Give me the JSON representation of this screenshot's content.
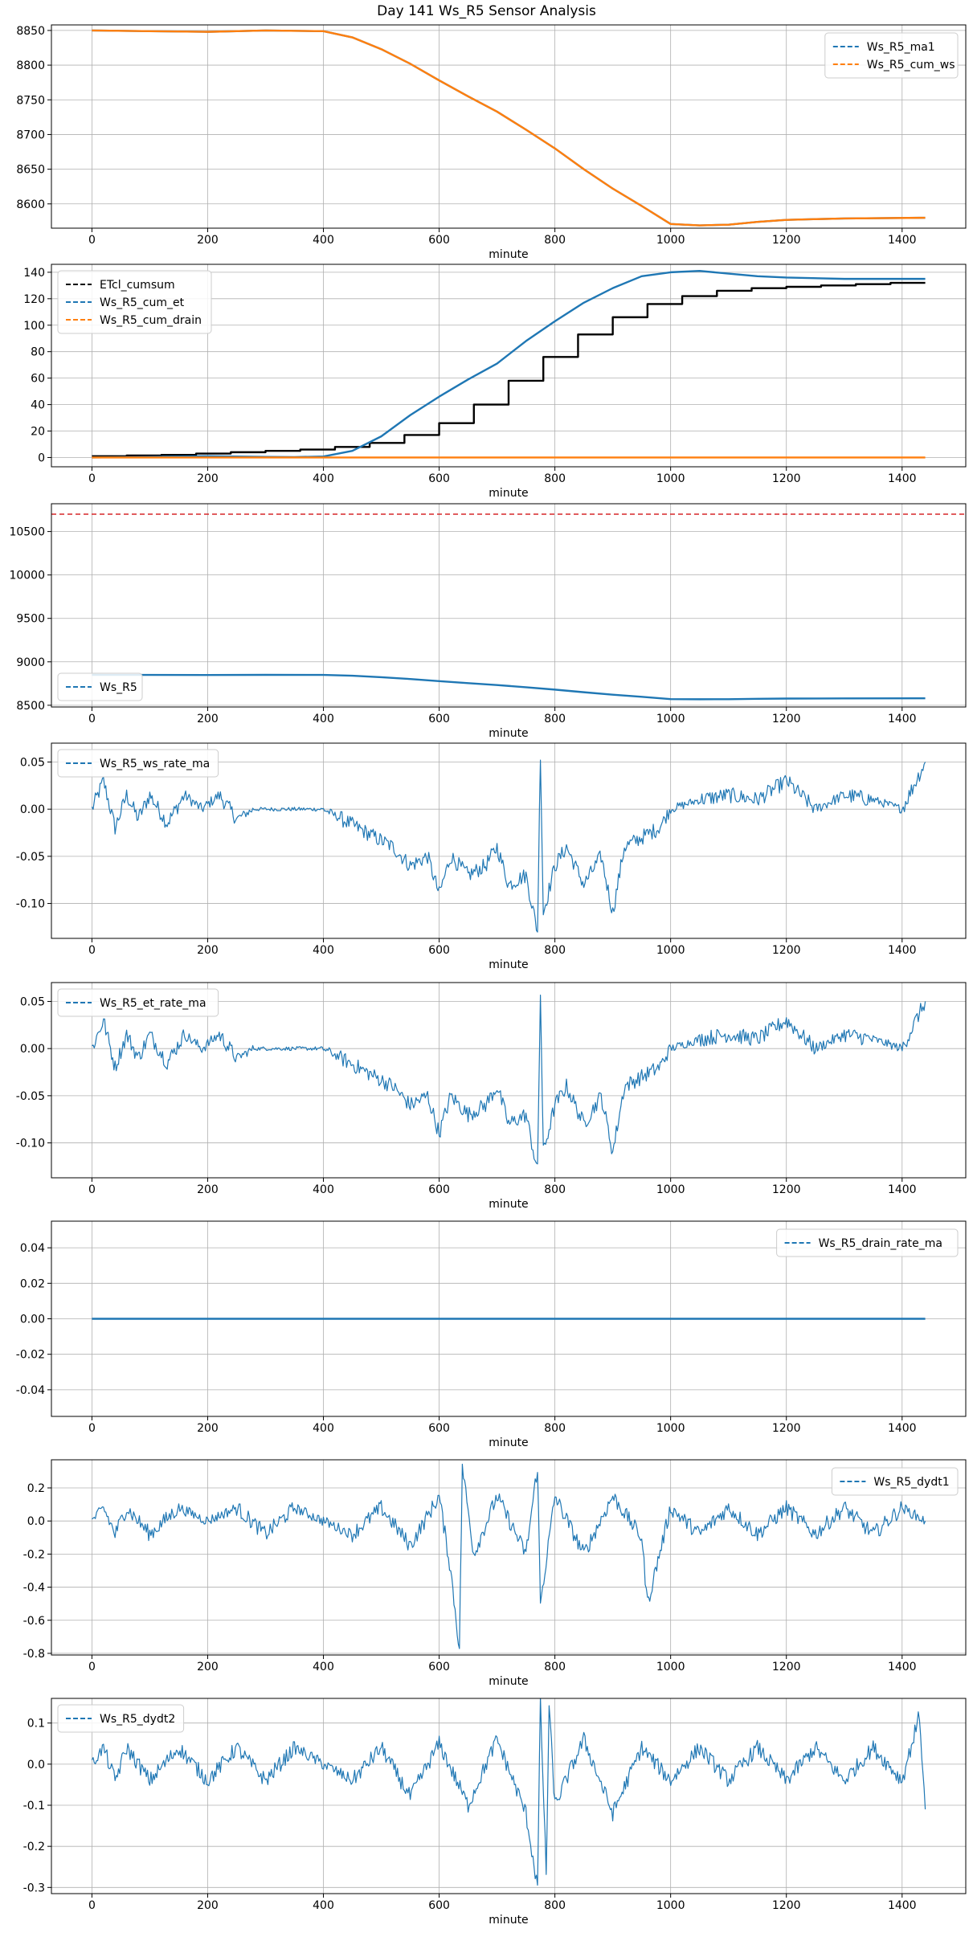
{
  "figure": {
    "title": "Day 141 Ws_R5 Sensor Analysis"
  },
  "chart_data": [
    {
      "type": "line",
      "xlabel": "minute",
      "xlim": [
        -70,
        1510
      ],
      "xticks": [
        0,
        200,
        400,
        600,
        800,
        1000,
        1200,
        1400
      ],
      "ylim": [
        8565,
        8858
      ],
      "yticks": [
        8600,
        8650,
        8700,
        8750,
        8800,
        8850
      ],
      "yticklabels": [
        "8600",
        "8650",
        "8700",
        "8750",
        "8800",
        "8850"
      ],
      "grid": true,
      "legend": "top-right",
      "series": [
        {
          "name": "Ws_R5_ma1",
          "color": "#1f77b4",
          "dashed": true,
          "x": [
            0,
            100,
            200,
            300,
            400,
            450,
            500,
            550,
            600,
            650,
            700,
            750,
            800,
            850,
            900,
            950,
            1000,
            1050,
            1100,
            1150,
            1200,
            1300,
            1440
          ],
          "y": [
            8850,
            8849,
            8848,
            8850,
            8849,
            8840,
            8823,
            8802,
            8778,
            8755,
            8733,
            8707,
            8680,
            8650,
            8622,
            8597,
            8571,
            8569,
            8570,
            8574,
            8577,
            8579,
            8580
          ]
        },
        {
          "name": "Ws_R5_cum_ws",
          "color": "#ff7f0e",
          "dashed": true,
          "x": [
            0,
            100,
            200,
            300,
            400,
            450,
            500,
            550,
            600,
            650,
            700,
            750,
            800,
            850,
            900,
            950,
            1000,
            1050,
            1100,
            1150,
            1200,
            1300,
            1440
          ],
          "y": [
            8850,
            8849,
            8848,
            8850,
            8849,
            8840,
            8823,
            8802,
            8778,
            8755,
            8733,
            8707,
            8680,
            8650,
            8622,
            8597,
            8571,
            8569,
            8570,
            8574,
            8577,
            8579,
            8580
          ]
        }
      ]
    },
    {
      "type": "line",
      "xlabel": "minute",
      "xlim": [
        -70,
        1510
      ],
      "xticks": [
        0,
        200,
        400,
        600,
        800,
        1000,
        1200,
        1400
      ],
      "ylim": [
        -7,
        146
      ],
      "yticks": [
        0,
        20,
        40,
        60,
        80,
        100,
        120,
        140
      ],
      "yticklabels": [
        "0",
        "20",
        "40",
        "60",
        "80",
        "100",
        "120",
        "140"
      ],
      "grid": true,
      "legend": "top-left",
      "series": [
        {
          "name": "ETcl_cumsum",
          "color": "#000000",
          "dashed": true,
          "step": true,
          "x": [
            0,
            60,
            120,
            180,
            240,
            300,
            360,
            420,
            480,
            540,
            600,
            660,
            720,
            780,
            840,
            900,
            960,
            1020,
            1080,
            1140,
            1200,
            1260,
            1320,
            1380,
            1440
          ],
          "y": [
            1,
            1.5,
            2,
            3,
            4,
            5,
            6,
            8,
            11,
            17,
            26,
            40,
            58,
            76,
            93,
            106,
            116,
            122,
            126,
            128,
            129,
            130,
            131,
            132,
            132
          ]
        },
        {
          "name": "Ws_R5_cum_et",
          "color": "#1f77b4",
          "dashed": true,
          "x": [
            0,
            100,
            200,
            300,
            350,
            400,
            450,
            500,
            550,
            600,
            650,
            700,
            750,
            800,
            850,
            900,
            950,
            1000,
            1050,
            1100,
            1150,
            1200,
            1300,
            1440
          ],
          "y": [
            0,
            0.5,
            1,
            0.5,
            0.3,
            0.8,
            5,
            16,
            32,
            46,
            59,
            71,
            88,
            103,
            117,
            128,
            137,
            140,
            141,
            139,
            137,
            136,
            135,
            135
          ]
        },
        {
          "name": "Ws_R5_cum_drain",
          "color": "#ff7f0e",
          "dashed": true,
          "x": [
            0,
            1440
          ],
          "y": [
            0,
            0
          ]
        }
      ]
    },
    {
      "type": "line",
      "xlabel": "minute",
      "xlim": [
        -70,
        1510
      ],
      "xticks": [
        0,
        200,
        400,
        600,
        800,
        1000,
        1200,
        1400
      ],
      "ylim": [
        8480,
        10820
      ],
      "yticks": [
        8500,
        9000,
        9500,
        10000,
        10500
      ],
      "yticklabels": [
        "8500",
        "9000",
        "9500",
        "10000",
        "10500"
      ],
      "grid": true,
      "legend": "bottom-left",
      "hline": {
        "y": 10700,
        "color": "#d62728",
        "dashed": true
      },
      "series": [
        {
          "name": "Ws_R5",
          "color": "#1f77b4",
          "dashed": true,
          "x": [
            0,
            100,
            200,
            300,
            400,
            450,
            500,
            550,
            600,
            650,
            700,
            750,
            800,
            850,
            900,
            950,
            1000,
            1050,
            1100,
            1150,
            1200,
            1300,
            1440
          ],
          "y": [
            8850,
            8849,
            8848,
            8850,
            8849,
            8840,
            8823,
            8802,
            8778,
            8755,
            8733,
            8707,
            8680,
            8650,
            8622,
            8597,
            8571,
            8569,
            8570,
            8574,
            8577,
            8579,
            8580
          ]
        }
      ]
    },
    {
      "type": "line",
      "xlabel": "minute",
      "xlim": [
        -70,
        1510
      ],
      "xticks": [
        0,
        200,
        400,
        600,
        800,
        1000,
        1200,
        1400
      ],
      "ylim": [
        -0.137,
        0.07
      ],
      "yticks": [
        -0.1,
        -0.05,
        0.0,
        0.05
      ],
      "yticklabels": [
        "-0.10",
        "-0.05",
        "0.00",
        "0.05"
      ],
      "grid": true,
      "legend": "top-left",
      "series": [
        {
          "name": "Ws_R5_ws_rate_ma",
          "color": "#1f77b4",
          "dashed": true,
          "x": [
            0,
            20,
            40,
            60,
            80,
            100,
            130,
            160,
            190,
            220,
            250,
            280,
            310,
            340,
            370,
            400,
            430,
            460,
            490,
            520,
            550,
            580,
            600,
            620,
            650,
            680,
            700,
            720,
            750,
            770,
            775,
            780,
            800,
            820,
            850,
            880,
            900,
            920,
            950,
            980,
            1000,
            1050,
            1100,
            1150,
            1200,
            1250,
            1300,
            1350,
            1400,
            1440
          ],
          "y": [
            0.0,
            0.03,
            -0.02,
            0.015,
            -0.01,
            0.015,
            -0.015,
            0.015,
            0.0,
            0.015,
            -0.01,
            0.0,
            0.0,
            0.0,
            0.0,
            0.0,
            -0.01,
            -0.02,
            -0.03,
            -0.04,
            -0.06,
            -0.05,
            -0.09,
            -0.05,
            -0.07,
            -0.06,
            -0.04,
            -0.08,
            -0.07,
            -0.13,
            0.06,
            -0.11,
            -0.06,
            -0.04,
            -0.08,
            -0.05,
            -0.11,
            -0.04,
            -0.03,
            -0.02,
            0.0,
            0.01,
            0.015,
            0.01,
            0.03,
            0.0,
            0.015,
            0.01,
            0.0,
            0.05
          ]
        }
      ]
    },
    {
      "type": "line",
      "xlabel": "minute",
      "xlim": [
        -70,
        1510
      ],
      "xticks": [
        0,
        200,
        400,
        600,
        800,
        1000,
        1200,
        1400
      ],
      "ylim": [
        -0.137,
        0.07
      ],
      "yticks": [
        -0.1,
        -0.05,
        0.0,
        0.05
      ],
      "yticklabels": [
        "-0.10",
        "-0.05",
        "0.00",
        "0.05"
      ],
      "grid": true,
      "legend": "top-left",
      "series": [
        {
          "name": "Ws_R5_et_rate_ma",
          "color": "#1f77b4",
          "dashed": true,
          "x": [
            0,
            20,
            40,
            60,
            80,
            100,
            130,
            160,
            190,
            220,
            250,
            280,
            310,
            340,
            370,
            400,
            430,
            460,
            490,
            520,
            550,
            580,
            600,
            620,
            650,
            680,
            700,
            720,
            750,
            770,
            775,
            780,
            800,
            820,
            850,
            880,
            900,
            920,
            950,
            980,
            1000,
            1050,
            1100,
            1150,
            1200,
            1250,
            1300,
            1350,
            1400,
            1440
          ],
          "y": [
            0.0,
            0.03,
            -0.02,
            0.015,
            -0.01,
            0.015,
            -0.015,
            0.015,
            0.0,
            0.015,
            -0.01,
            0.0,
            0.0,
            0.0,
            0.0,
            0.0,
            -0.01,
            -0.02,
            -0.03,
            -0.04,
            -0.06,
            -0.05,
            -0.09,
            -0.05,
            -0.07,
            -0.06,
            -0.04,
            -0.08,
            -0.07,
            -0.13,
            0.06,
            -0.11,
            -0.06,
            -0.04,
            -0.08,
            -0.05,
            -0.11,
            -0.04,
            -0.03,
            -0.02,
            0.0,
            0.01,
            0.015,
            0.01,
            0.03,
            0.0,
            0.015,
            0.01,
            0.0,
            0.05
          ]
        }
      ]
    },
    {
      "type": "line",
      "xlabel": "minute",
      "xlim": [
        -70,
        1510
      ],
      "xticks": [
        0,
        200,
        400,
        600,
        800,
        1000,
        1200,
        1400
      ],
      "ylim": [
        -0.055,
        0.055
      ],
      "yticks": [
        -0.04,
        -0.02,
        0.0,
        0.02,
        0.04
      ],
      "yticklabels": [
        "-0.04",
        "-0.02",
        "0.00",
        "0.02",
        "0.04"
      ],
      "grid": true,
      "legend": "top-right",
      "series": [
        {
          "name": "Ws_R5_drain_rate_ma",
          "color": "#1f77b4",
          "dashed": true,
          "x": [
            0,
            1440
          ],
          "y": [
            0,
            0
          ]
        }
      ]
    },
    {
      "type": "line",
      "xlabel": "minute",
      "xlim": [
        -70,
        1510
      ],
      "xticks": [
        0,
        200,
        400,
        600,
        800,
        1000,
        1200,
        1400
      ],
      "ylim": [
        -0.81,
        0.37
      ],
      "yticks": [
        -0.8,
        -0.6,
        -0.4,
        -0.2,
        0.0,
        0.2
      ],
      "yticklabels": [
        "-0.8",
        "-0.6",
        "-0.4",
        "-0.2",
        "0.0",
        "0.2"
      ],
      "grid": true,
      "legend": "top-right",
      "series": [
        {
          "name": "Ws_R5_dydt1",
          "color": "#1f77b4",
          "dashed": true,
          "x": [
            0,
            20,
            40,
            60,
            100,
            150,
            200,
            250,
            300,
            350,
            400,
            450,
            500,
            550,
            600,
            620,
            635,
            640,
            660,
            700,
            750,
            770,
            775,
            800,
            850,
            900,
            950,
            960,
            1000,
            1050,
            1100,
            1150,
            1200,
            1250,
            1300,
            1350,
            1400,
            1440
          ],
          "y": [
            0.0,
            0.08,
            -0.08,
            0.08,
            -0.08,
            0.08,
            0.0,
            0.08,
            -0.08,
            0.08,
            0.0,
            -0.08,
            0.08,
            -0.15,
            0.15,
            -0.3,
            -0.77,
            0.33,
            -0.2,
            0.15,
            -0.2,
            0.33,
            -0.5,
            0.15,
            -0.2,
            0.15,
            -0.1,
            -0.5,
            0.08,
            -0.08,
            0.08,
            -0.08,
            0.08,
            -0.08,
            0.08,
            -0.08,
            0.08,
            0.0
          ]
        }
      ]
    },
    {
      "type": "line",
      "xlabel": "minute",
      "xlim": [
        -70,
        1510
      ],
      "xticks": [
        0,
        200,
        400,
        600,
        800,
        1000,
        1200,
        1400
      ],
      "ylim": [
        -0.315,
        0.16
      ],
      "yticks": [
        -0.3,
        -0.2,
        -0.1,
        0.0,
        0.1
      ],
      "yticklabels": [
        "-0.3",
        "-0.2",
        "-0.1",
        "0.0",
        "0.1"
      ],
      "grid": true,
      "legend": "top-left",
      "series": [
        {
          "name": "Ws_R5_dydt2",
          "color": "#1f77b4",
          "dashed": true,
          "x": [
            0,
            20,
            40,
            60,
            100,
            150,
            200,
            250,
            300,
            350,
            400,
            450,
            500,
            550,
            600,
            650,
            700,
            750,
            770,
            775,
            785,
            790,
            800,
            850,
            900,
            950,
            1000,
            1050,
            1100,
            1150,
            1200,
            1250,
            1300,
            1350,
            1400,
            1430,
            1440
          ],
          "y": [
            0.0,
            0.04,
            -0.04,
            0.04,
            -0.04,
            0.04,
            -0.04,
            0.04,
            -0.04,
            0.04,
            0.0,
            -0.04,
            0.04,
            -0.08,
            0.05,
            -0.1,
            0.06,
            -0.12,
            -0.3,
            0.15,
            -0.27,
            0.14,
            -0.1,
            0.06,
            -0.12,
            0.04,
            -0.04,
            0.04,
            -0.04,
            0.04,
            -0.04,
            0.04,
            -0.04,
            0.04,
            -0.04,
            0.12,
            -0.11
          ]
        }
      ]
    }
  ]
}
